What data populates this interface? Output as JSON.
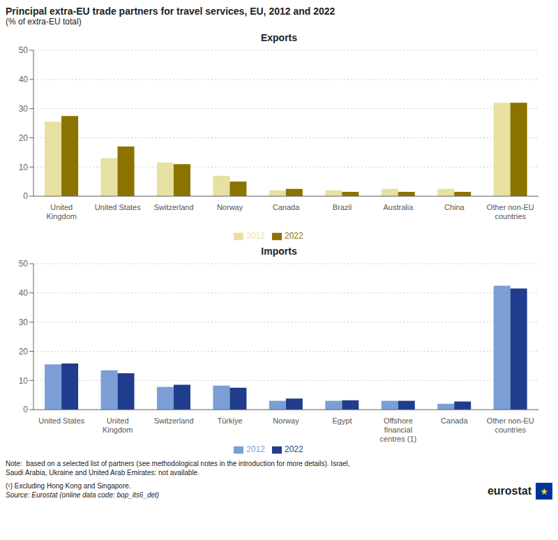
{
  "title": "Principal extra-EU trade partners for travel services, EU, 2012 and 2022",
  "subtitle": "(% of extra-EU total)",
  "annotations": [
    "Note:  based on a selected list of partners (see methodological notes in the introduction for more details). Israel,\nSaudi Arabia, Ukraine and United Arab Emirates: not available.",
    "(¹) Excluding Hong Kong and Singapore.",
    "Source: Eurostat (online data code: bop_its6_det)",
    "eurostat",
    "★"
  ],
  "chart_data": [
    {
      "type": "bar",
      "title": "Exports",
      "categories": [
        "United\nKingdom",
        "United States",
        "Switzerland",
        "Norway",
        "Canada",
        "Brazil",
        "Australia",
        "China",
        "Other non-EU\ncountries"
      ],
      "series": [
        {
          "name": "2012",
          "color": "#e8e0a0",
          "values": [
            25.5,
            13.0,
            11.5,
            7.0,
            2.0,
            2.0,
            2.5,
            2.5,
            32.0
          ]
        },
        {
          "name": "2022",
          "color": "#8b7300",
          "values": [
            27.5,
            17.0,
            11.0,
            5.0,
            2.5,
            1.5,
            1.5,
            1.5,
            32.0
          ]
        }
      ],
      "ylim": [
        0,
        50
      ],
      "yticks": [
        0,
        10,
        20,
        30,
        40,
        50
      ],
      "grid": true,
      "legend": "bottom"
    },
    {
      "type": "bar",
      "title": "Imports",
      "categories": [
        "United States",
        "United\nKingdom",
        "Switzerland",
        "Türkiye",
        "Norway",
        "Egypt",
        "Offshore\nfinancial\ncentres (1)",
        "Canada",
        "Other non-EU\ncountries"
      ],
      "series": [
        {
          "name": "2012",
          "color": "#7b9fd4",
          "values": [
            15.5,
            13.5,
            7.8,
            8.2,
            3.0,
            3.0,
            3.0,
            2.0,
            42.5
          ]
        },
        {
          "name": "2022",
          "color": "#1f3d8c",
          "values": [
            15.8,
            12.5,
            8.5,
            7.5,
            3.8,
            3.2,
            3.0,
            2.8,
            41.5
          ]
        }
      ],
      "ylim": [
        0,
        50
      ],
      "yticks": [
        0,
        10,
        20,
        30,
        40,
        50
      ],
      "grid": true,
      "legend": "bottom"
    }
  ]
}
